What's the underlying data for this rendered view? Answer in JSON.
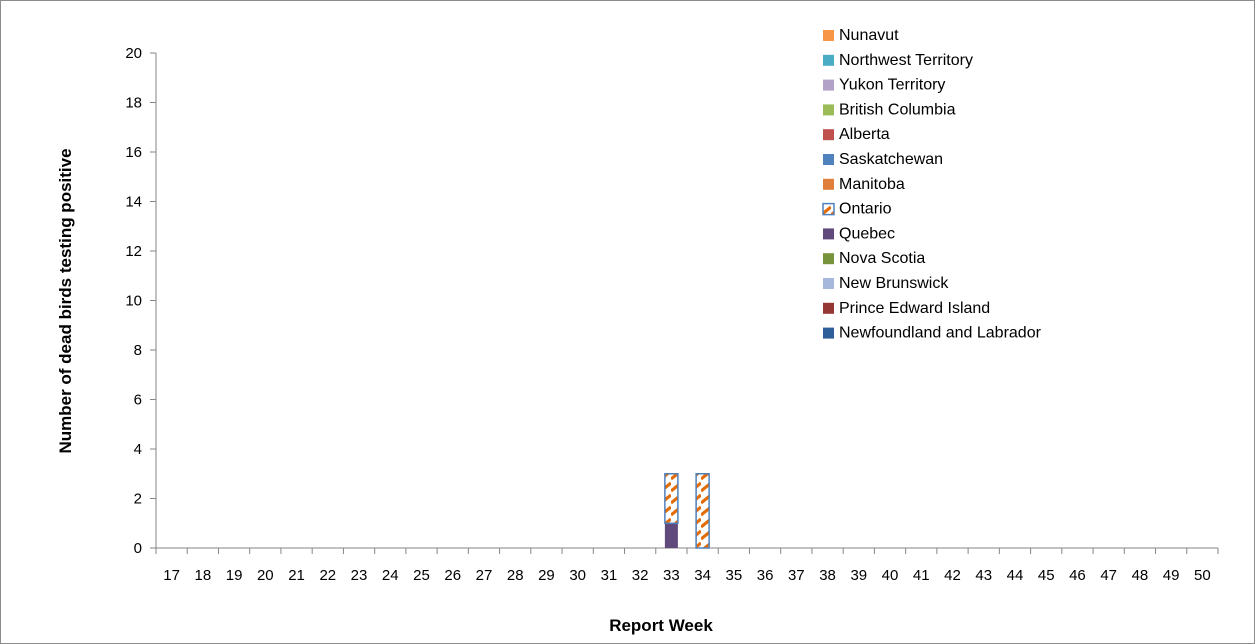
{
  "chart_data": {
    "type": "bar",
    "stacked": true,
    "xlabel": "Report Week",
    "ylabel": "Number of dead birds testing positive",
    "ylim": [
      0,
      20
    ],
    "yticks": [
      0,
      2,
      4,
      6,
      8,
      10,
      12,
      14,
      16,
      18,
      20
    ],
    "grid": false,
    "legend_position": "top-right",
    "categories": [
      "17",
      "18",
      "19",
      "20",
      "21",
      "22",
      "23",
      "24",
      "25",
      "26",
      "27",
      "28",
      "29",
      "30",
      "31",
      "32",
      "33",
      "34",
      "35",
      "36",
      "37",
      "38",
      "39",
      "40",
      "41",
      "42",
      "43",
      "44",
      "45",
      "46",
      "47",
      "48",
      "49",
      "50"
    ],
    "series": [
      {
        "name": "Nunavut",
        "color": "#f79646",
        "pattern": "solid",
        "values": [
          0,
          0,
          0,
          0,
          0,
          0,
          0,
          0,
          0,
          0,
          0,
          0,
          0,
          0,
          0,
          0,
          0,
          0,
          0,
          0,
          0,
          0,
          0,
          0,
          0,
          0,
          0,
          0,
          0,
          0,
          0,
          0,
          0,
          0
        ]
      },
      {
        "name": "Northwest Territory",
        "color": "#4bacc6",
        "pattern": "solid",
        "values": [
          0,
          0,
          0,
          0,
          0,
          0,
          0,
          0,
          0,
          0,
          0,
          0,
          0,
          0,
          0,
          0,
          0,
          0,
          0,
          0,
          0,
          0,
          0,
          0,
          0,
          0,
          0,
          0,
          0,
          0,
          0,
          0,
          0,
          0
        ]
      },
      {
        "name": "Yukon Territory",
        "color": "#b3a2c7",
        "pattern": "solid",
        "values": [
          0,
          0,
          0,
          0,
          0,
          0,
          0,
          0,
          0,
          0,
          0,
          0,
          0,
          0,
          0,
          0,
          0,
          0,
          0,
          0,
          0,
          0,
          0,
          0,
          0,
          0,
          0,
          0,
          0,
          0,
          0,
          0,
          0,
          0
        ]
      },
      {
        "name": "British Columbia",
        "color": "#9bbb59",
        "pattern": "solid",
        "values": [
          0,
          0,
          0,
          0,
          0,
          0,
          0,
          0,
          0,
          0,
          0,
          0,
          0,
          0,
          0,
          0,
          0,
          0,
          0,
          0,
          0,
          0,
          0,
          0,
          0,
          0,
          0,
          0,
          0,
          0,
          0,
          0,
          0,
          0
        ]
      },
      {
        "name": "Alberta",
        "color": "#c0504d",
        "pattern": "solid",
        "values": [
          0,
          0,
          0,
          0,
          0,
          0,
          0,
          0,
          0,
          0,
          0,
          0,
          0,
          0,
          0,
          0,
          0,
          0,
          0,
          0,
          0,
          0,
          0,
          0,
          0,
          0,
          0,
          0,
          0,
          0,
          0,
          0,
          0,
          0
        ]
      },
      {
        "name": "Saskatchewan",
        "color": "#4f81bd",
        "pattern": "solid",
        "values": [
          0,
          0,
          0,
          0,
          0,
          0,
          0,
          0,
          0,
          0,
          0,
          0,
          0,
          0,
          0,
          0,
          0,
          0,
          0,
          0,
          0,
          0,
          0,
          0,
          0,
          0,
          0,
          0,
          0,
          0,
          0,
          0,
          0,
          0
        ]
      },
      {
        "name": "Manitoba",
        "color": "#e07f3a",
        "pattern": "solid",
        "values": [
          0,
          0,
          0,
          0,
          0,
          0,
          0,
          0,
          0,
          0,
          0,
          0,
          0,
          0,
          0,
          0,
          0,
          0,
          0,
          0,
          0,
          0,
          0,
          0,
          0,
          0,
          0,
          0,
          0,
          0,
          0,
          0,
          0,
          0
        ]
      },
      {
        "name": "Ontario",
        "color": "#e36c09",
        "border": "#4f81bd",
        "pattern": "hatched",
        "values": [
          0,
          0,
          0,
          0,
          0,
          0,
          0,
          0,
          0,
          0,
          0,
          0,
          0,
          0,
          0,
          0,
          2,
          3,
          0,
          0,
          0,
          0,
          0,
          0,
          0,
          0,
          0,
          0,
          0,
          0,
          0,
          0,
          0,
          0
        ]
      },
      {
        "name": "Quebec",
        "color": "#604a7b",
        "pattern": "solid",
        "values": [
          0,
          0,
          0,
          0,
          0,
          0,
          0,
          0,
          0,
          0,
          0,
          0,
          0,
          0,
          0,
          0,
          1,
          0,
          0,
          0,
          0,
          0,
          0,
          0,
          0,
          0,
          0,
          0,
          0,
          0,
          0,
          0,
          0,
          0
        ]
      },
      {
        "name": "Nova Scotia",
        "color": "#77933c",
        "pattern": "solid",
        "values": [
          0,
          0,
          0,
          0,
          0,
          0,
          0,
          0,
          0,
          0,
          0,
          0,
          0,
          0,
          0,
          0,
          0,
          0,
          0,
          0,
          0,
          0,
          0,
          0,
          0,
          0,
          0,
          0,
          0,
          0,
          0,
          0,
          0,
          0
        ]
      },
      {
        "name": "New Brunswick",
        "color": "#a6b9dd",
        "pattern": "solid",
        "values": [
          0,
          0,
          0,
          0,
          0,
          0,
          0,
          0,
          0,
          0,
          0,
          0,
          0,
          0,
          0,
          0,
          0,
          0,
          0,
          0,
          0,
          0,
          0,
          0,
          0,
          0,
          0,
          0,
          0,
          0,
          0,
          0,
          0,
          0
        ]
      },
      {
        "name": "Prince Edward Island",
        "color": "#953735",
        "pattern": "solid",
        "values": [
          0,
          0,
          0,
          0,
          0,
          0,
          0,
          0,
          0,
          0,
          0,
          0,
          0,
          0,
          0,
          0,
          0,
          0,
          0,
          0,
          0,
          0,
          0,
          0,
          0,
          0,
          0,
          0,
          0,
          0,
          0,
          0,
          0,
          0
        ]
      },
      {
        "name": "Newfoundland and Labrador",
        "color": "#2e5f98",
        "pattern": "solid",
        "values": [
          0,
          0,
          0,
          0,
          0,
          0,
          0,
          0,
          0,
          0,
          0,
          0,
          0,
          0,
          0,
          0,
          0,
          0,
          0,
          0,
          0,
          0,
          0,
          0,
          0,
          0,
          0,
          0,
          0,
          0,
          0,
          0,
          0,
          0
        ]
      }
    ]
  }
}
